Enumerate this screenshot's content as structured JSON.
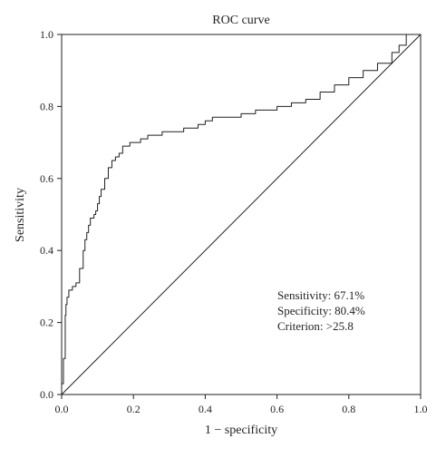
{
  "chart_data": {
    "type": "line",
    "title": "ROC curve",
    "xlabel": "1 − specificity",
    "ylabel": "Sensitivity",
    "xlim": [
      0,
      1
    ],
    "ylim": [
      0,
      1
    ],
    "xticks": [
      "0.0",
      "0.2",
      "0.4",
      "0.6",
      "0.8",
      "1.0"
    ],
    "yticks": [
      "0.0",
      "0.2",
      "0.4",
      "0.6",
      "0.8",
      "1.0"
    ],
    "grid": false,
    "annotations": [
      "Sensitivity: 67.1%",
      "Specificity: 80.4%",
      "Criterion: >25.8"
    ],
    "series": [
      {
        "kind": "roc",
        "color": "#231f20",
        "x": [
          0.0,
          0.0,
          0.005,
          0.005,
          0.01,
          0.012,
          0.015,
          0.02,
          0.025,
          0.03,
          0.035,
          0.04,
          0.05,
          0.06,
          0.065,
          0.07,
          0.075,
          0.08,
          0.085,
          0.09,
          0.095,
          0.1,
          0.105,
          0.11,
          0.12,
          0.13,
          0.14,
          0.15,
          0.16,
          0.17,
          0.18,
          0.19,
          0.2,
          0.22,
          0.24,
          0.26,
          0.28,
          0.3,
          0.34,
          0.38,
          0.4,
          0.42,
          0.46,
          0.5,
          0.54,
          0.58,
          0.6,
          0.64,
          0.68,
          0.72,
          0.76,
          0.8,
          0.84,
          0.88,
          0.92,
          0.94,
          0.96,
          1.0
        ],
        "y": [
          0.0,
          0.03,
          0.05,
          0.1,
          0.22,
          0.25,
          0.27,
          0.29,
          0.29,
          0.3,
          0.3,
          0.31,
          0.35,
          0.4,
          0.43,
          0.45,
          0.47,
          0.49,
          0.49,
          0.5,
          0.51,
          0.53,
          0.55,
          0.57,
          0.6,
          0.63,
          0.65,
          0.66,
          0.67,
          0.69,
          0.69,
          0.7,
          0.7,
          0.71,
          0.72,
          0.72,
          0.73,
          0.73,
          0.74,
          0.75,
          0.76,
          0.77,
          0.77,
          0.78,
          0.79,
          0.79,
          0.8,
          0.81,
          0.82,
          0.84,
          0.86,
          0.88,
          0.9,
          0.92,
          0.95,
          0.97,
          1.0,
          1.0
        ]
      },
      {
        "kind": "reference",
        "color": "#231f20",
        "x": [
          0,
          1
        ],
        "y": [
          0,
          1
        ]
      }
    ]
  }
}
